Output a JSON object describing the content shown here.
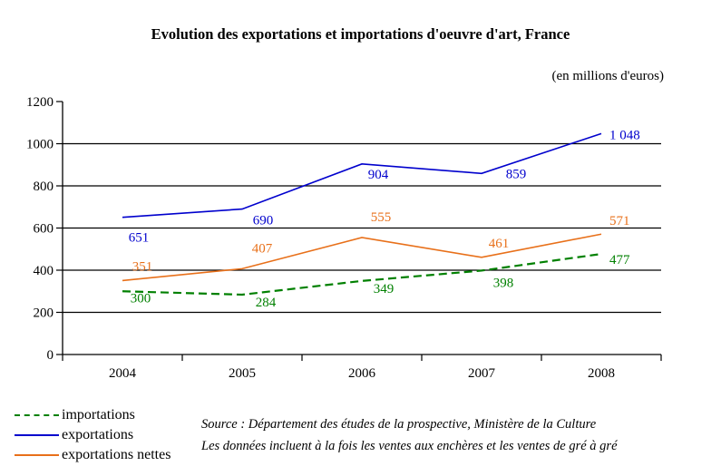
{
  "title": "Evolution des exportations et importations d'oeuvre d'art, France",
  "subtitle": "(en millions d'euros)",
  "chart_data": {
    "type": "line",
    "categories": [
      "2004",
      "2005",
      "2006",
      "2007",
      "2008"
    ],
    "series": [
      {
        "name": "importations",
        "values": [
          300,
          284,
          349,
          398,
          477
        ],
        "labels": [
          "300",
          "284",
          "349",
          "398",
          "477"
        ],
        "color": "#008000",
        "dashed": true
      },
      {
        "name": "exportations",
        "values": [
          651,
          690,
          904,
          859,
          1048
        ],
        "labels": [
          "651",
          "690",
          "904",
          "859",
          "1 048"
        ],
        "color": "#0000CD",
        "dashed": false
      },
      {
        "name": "exportations nettes",
        "values": [
          351,
          407,
          555,
          461,
          571
        ],
        "labels": [
          "351",
          "407",
          "555",
          "461",
          "571"
        ],
        "color": "#E8701A",
        "dashed": false
      }
    ],
    "title": "Evolution des exportations et importations d'oeuvre d'art, France",
    "subtitle": "(en millions d'euros)",
    "xlabel": "",
    "ylabel": "",
    "ylim": [
      0,
      1200
    ],
    "ytick_interval": 200,
    "yticks": [
      "0",
      "200",
      "400",
      "600",
      "800",
      "1000",
      "1200"
    ],
    "grid": true,
    "legend_position": "bottom-left"
  },
  "legend": {
    "items": [
      {
        "label": "importations",
        "color": "#008000",
        "dashed": true
      },
      {
        "label": "exportations",
        "color": "#0000CD",
        "dashed": false
      },
      {
        "label": "exportations nettes",
        "color": "#E8701A",
        "dashed": false
      }
    ]
  },
  "source": {
    "line1": "Source : Département des études de la prospective, Ministère de la Culture",
    "line2": "Les données incluent à la fois les ventes aux enchères et les ventes de gré à gré"
  }
}
